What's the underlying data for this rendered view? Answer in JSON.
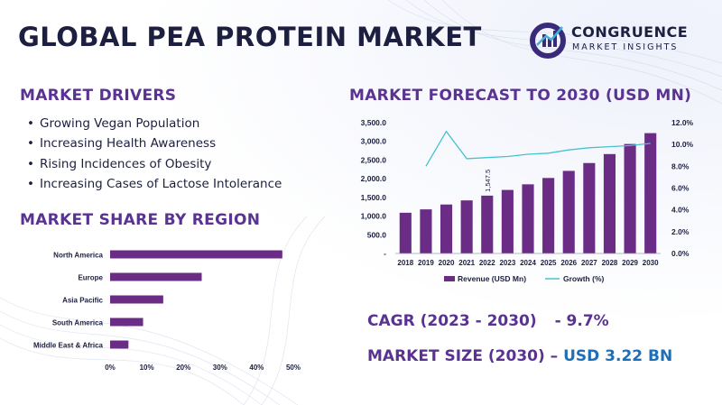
{
  "title": "GLOBAL PEA PROTEIN MARKET",
  "logo": {
    "name": "CONGRUENCE",
    "tagline": "MARKET INSIGHTS"
  },
  "drivers": {
    "heading": "MARKET DRIVERS",
    "items": [
      "Growing Vegan Population",
      "Increasing Health Awareness",
      "Rising Incidences of Obesity",
      "Increasing Cases of Lactose Intolerance"
    ]
  },
  "region": {
    "heading": "MARKET SHARE BY REGION"
  },
  "forecast": {
    "heading": "MARKET FORECAST TO 2030 (USD MN)"
  },
  "cagr": {
    "label": "CAGR (2023 - 2030)",
    "value": "- 9.7%"
  },
  "market_size": {
    "label": "MARKET SIZE (2030) –",
    "value": "USD 3.22 BN"
  },
  "colors": {
    "purple": "#5a3392",
    "bar": "#6a2c85",
    "line": "#45c3cf",
    "title": "#1c1f3f",
    "blue": "#1e6fb8"
  },
  "chart_data": [
    {
      "type": "bar",
      "orientation": "horizontal",
      "categories": [
        "North America",
        "Europe",
        "Asia Pacific",
        "South America",
        "Middle East & Africa"
      ],
      "values": [
        47,
        25,
        14.5,
        9,
        5
      ],
      "xlim": [
        0,
        50
      ],
      "x_ticks": [
        "0%",
        "10%",
        "20%",
        "30%",
        "40%",
        "50%"
      ],
      "grid": false
    },
    {
      "type": "bar",
      "categories": [
        "2018",
        "2019",
        "2020",
        "2021",
        "2022",
        "2023",
        "2024",
        "2025",
        "2026",
        "2027",
        "2028",
        "2029",
        "2030"
      ],
      "series": [
        {
          "name": "Revenue (USD Mn)",
          "type": "bar",
          "axis": "left",
          "values": [
            1090,
            1180,
            1310,
            1420,
            1547.5,
            1700,
            1850,
            2020,
            2210,
            2420,
            2660,
            2930,
            3220
          ]
        },
        {
          "name": "Growth (%)",
          "type": "line",
          "axis": "right",
          "values": [
            null,
            8.0,
            11.2,
            8.7,
            8.8,
            8.9,
            9.1,
            9.2,
            9.5,
            9.7,
            9.8,
            9.9,
            10.1
          ]
        }
      ],
      "data_labels": [
        {
          "category": "2022",
          "text": "1,547.5"
        }
      ],
      "ylim_left": [
        0,
        3500
      ],
      "y_left_ticks": [
        "-",
        "500.0",
        "1,000.0",
        "1,500.0",
        "2,000.0",
        "2,500.0",
        "3,000.0",
        "3,500.0"
      ],
      "ylim_right": [
        0,
        12
      ],
      "y_right_ticks": [
        "0.0%",
        "2.0%",
        "4.0%",
        "6.0%",
        "8.0%",
        "10.0%",
        "12.0%"
      ],
      "legend": "bottom",
      "grid": false
    }
  ]
}
